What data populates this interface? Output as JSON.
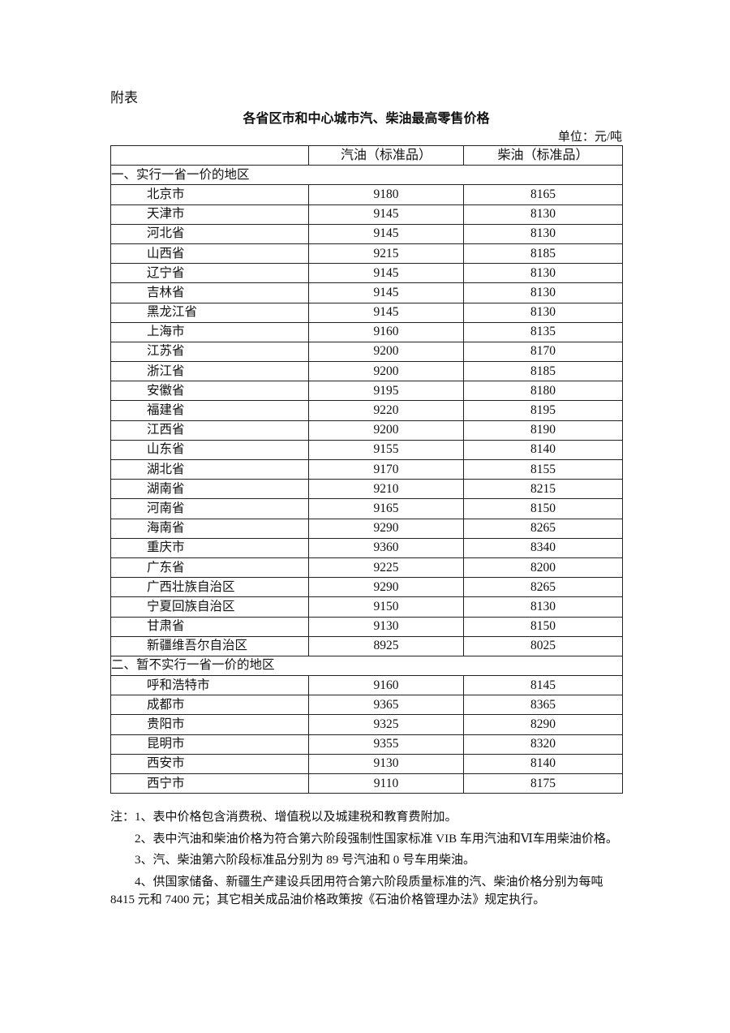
{
  "appendix_label": "附表",
  "title": "各省区市和中心城市汽、柴油最高零售价格",
  "unit": "单位：元/吨",
  "table": {
    "headers": [
      "",
      "汽油（标准品）",
      "柴油（标准品）"
    ],
    "sections": [
      {
        "label": "一、实行一省一价的地区",
        "rows": [
          [
            "北京市",
            "9180",
            "8165"
          ],
          [
            "天津市",
            "9145",
            "8130"
          ],
          [
            "河北省",
            "9145",
            "8130"
          ],
          [
            "山西省",
            "9215",
            "8185"
          ],
          [
            "辽宁省",
            "9145",
            "8130"
          ],
          [
            "吉林省",
            "9145",
            "8130"
          ],
          [
            "黑龙江省",
            "9145",
            "8130"
          ],
          [
            "上海市",
            "9160",
            "8135"
          ],
          [
            "江苏省",
            "9200",
            "8170"
          ],
          [
            "浙江省",
            "9200",
            "8185"
          ],
          [
            "安徽省",
            "9195",
            "8180"
          ],
          [
            "福建省",
            "9220",
            "8195"
          ],
          [
            "江西省",
            "9200",
            "8190"
          ],
          [
            "山东省",
            "9155",
            "8140"
          ],
          [
            "湖北省",
            "9170",
            "8155"
          ],
          [
            "湖南省",
            "9210",
            "8215"
          ],
          [
            "河南省",
            "9165",
            "8150"
          ],
          [
            "海南省",
            "9290",
            "8265"
          ],
          [
            "重庆市",
            "9360",
            "8340"
          ],
          [
            "广东省",
            "9225",
            "8200"
          ],
          [
            "广西壮族自治区",
            "9290",
            "8265"
          ],
          [
            "宁夏回族自治区",
            "9150",
            "8130"
          ],
          [
            "甘肃省",
            "9130",
            "8150"
          ],
          [
            "新疆维吾尔自治区",
            "8925",
            "8025"
          ]
        ]
      },
      {
        "label": "二、暂不实行一省一价的地区",
        "rows": [
          [
            "呼和浩特市",
            "9160",
            "8145"
          ],
          [
            "成都市",
            "9365",
            "8365"
          ],
          [
            "贵阳市",
            "9325",
            "8290"
          ],
          [
            "昆明市",
            "9355",
            "8320"
          ],
          [
            "西安市",
            "9130",
            "8140"
          ],
          [
            "西宁市",
            "9110",
            "8175"
          ]
        ]
      }
    ]
  },
  "notes": [
    "注：1、表中价格包含消费税、增值税以及城建税和教育费附加。",
    "2、表中汽油和柴油价格为符合第六阶段强制性国家标准 VIB 车用汽油和Ⅵ车用柴油价格。",
    "3、汽、柴油第六阶段标准品分别为 89 号汽油和 0 号车用柴油。",
    "4、供国家储备、新疆生产建设兵团用符合第六阶段质量标准的汽、柴油价格分别为每吨 8415 元和 7400 元；其它相关成品油价格政策按《石油价格管理办法》规定执行。"
  ]
}
